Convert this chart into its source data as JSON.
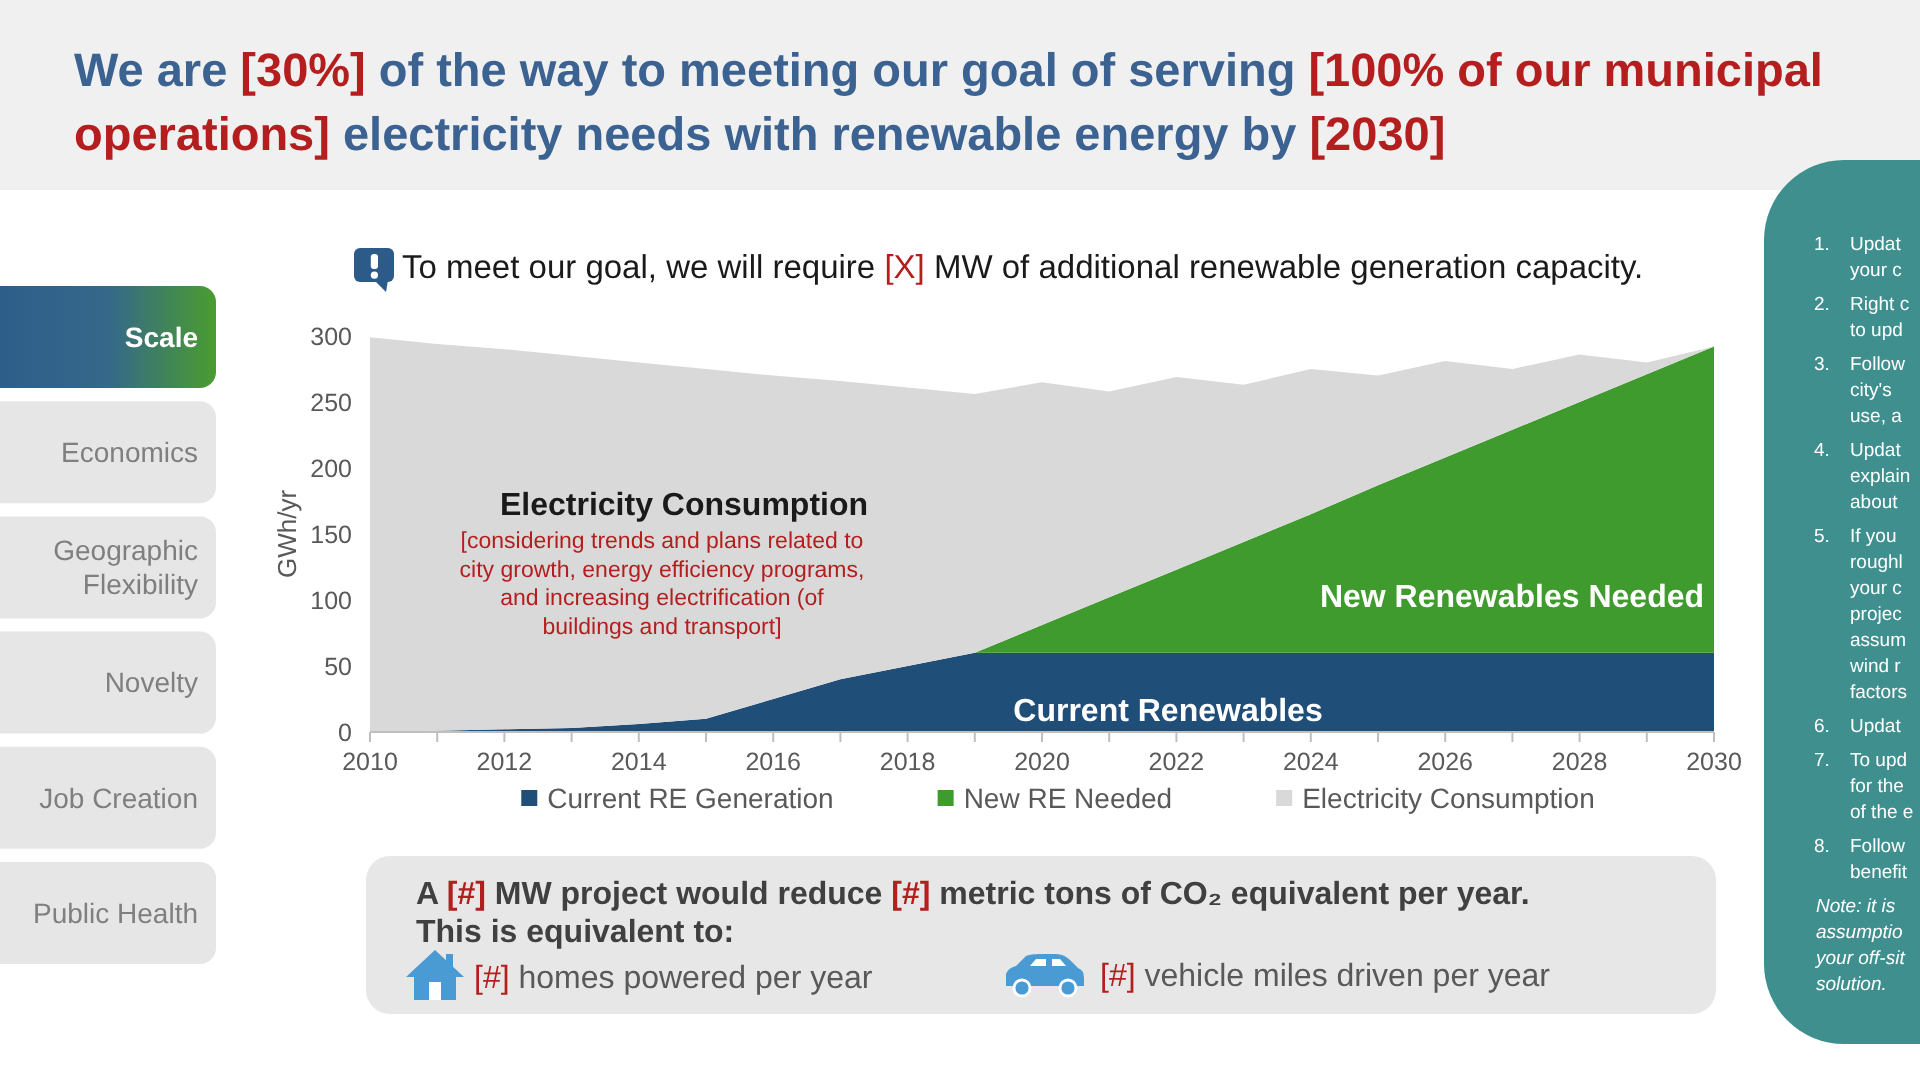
{
  "chart_data": {
    "type": "area",
    "title": "We are [30%] of the way to meeting our goal of serving [100% of our municipal operations] electricity needs with renewable energy by [2030]",
    "ylabel": "GWh/yr",
    "x": [
      2010,
      2011,
      2012,
      2013,
      2014,
      2015,
      2016,
      2017,
      2018,
      2019,
      2020,
      2021,
      2022,
      2023,
      2024,
      2025,
      2026,
      2027,
      2028,
      2029,
      2030
    ],
    "series": [
      {
        "name": "Current RE Generation",
        "color": "#1f4e79",
        "values": [
          0,
          1,
          2,
          3,
          6,
          10,
          25,
          40,
          50,
          60,
          60,
          60,
          60,
          60,
          60,
          60,
          60,
          60,
          60,
          60,
          60
        ]
      },
      {
        "name": "New RE Needed",
        "color": "#3f9b2e",
        "values": [
          null,
          null,
          null,
          null,
          null,
          null,
          null,
          null,
          null,
          0,
          21,
          42,
          63,
          84,
          105,
          127,
          148,
          169,
          190,
          211,
          232
        ]
      },
      {
        "name": "Electricity Consumption",
        "color": "#d9d9d9",
        "values": [
          299,
          293,
          288,
          282,
          274,
          265,
          245,
          226,
          211,
          196,
          184,
          156,
          146,
          119,
          110,
          83,
          73,
          46,
          36,
          9,
          0
        ]
      }
    ],
    "stacked": true,
    "xlim": [
      2010,
      2030
    ],
    "xticks": [
      2010,
      {
        "value": 2011,
        "label": null
      },
      2012,
      {
        "value": 2013,
        "label": null
      },
      2014,
      {
        "value": 2015,
        "label": null
      },
      2016,
      {
        "value": 2017,
        "label": null
      },
      2018,
      {
        "value": 2019,
        "label": null
      },
      2020,
      {
        "value": 2021,
        "label": null
      },
      2022,
      {
        "value": 2023,
        "label": null
      },
      2024,
      {
        "value": 2025,
        "label": null
      },
      2026,
      {
        "value": 2027,
        "label": null
      },
      2028,
      {
        "value": 2029,
        "label": null
      },
      2030
    ],
    "ylim": [
      0,
      300
    ],
    "yticks": [
      0,
      50,
      100,
      150,
      200,
      250,
      300
    ],
    "legend": "bottom",
    "annotations": [
      "To meet our goal, we will require [X] MW of additional renewable generation capacity.",
      "Scale",
      "Economics",
      "Geographic Flexibility",
      "Novelty",
      "Job Creation",
      "Public Health",
      "A [#] MW project would reduce [#] metric tons of CO₂ equivalent per year.",
      "This is equivalent to:",
      "[#] homes powered per year",
      "[#] vehicle miles driven per year",
      "1. Updat your c",
      "2. Right c to upd",
      "3. Follow city's use, a",
      "4. Updat explain about",
      "5. If you roughl your c projec assum wind r factors",
      "6. Updat",
      "7. To upd for the of the e",
      "8. Follow benefit",
      "Note: it is assumptio your off-sit solution.",
      "Electricity Consumption",
      "[considering trends and plans related to city growth, energy efficiency programs, and increasing electrification (of buildings and transport]",
      "New Renewables Needed",
      "Current Renewables"
    ]
  }
}
